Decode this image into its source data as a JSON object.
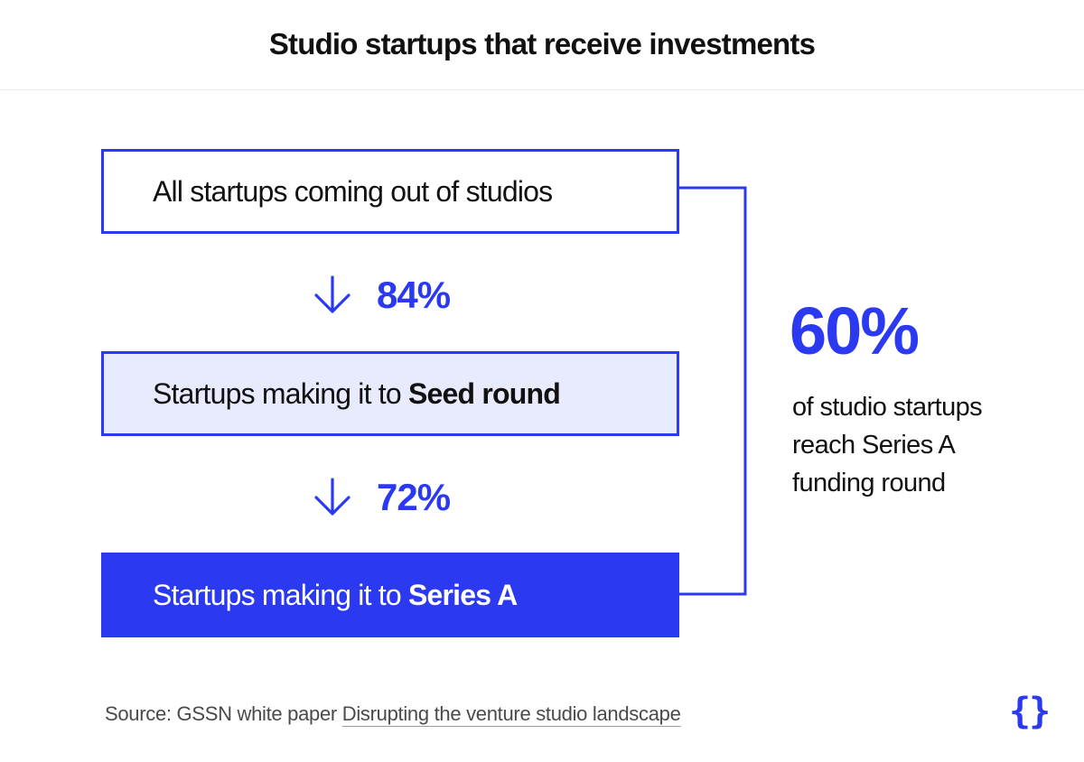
{
  "title": "Studio startups that receive investments",
  "stages": [
    {
      "label": "All startups coming out of studios",
      "bold": ""
    },
    {
      "label": "Startups making it to ",
      "bold": "Seed round"
    },
    {
      "label": "Startups making it to ",
      "bold": "Series A"
    }
  ],
  "conversions": [
    {
      "value": "84%",
      "icon": "arrow-down-icon"
    },
    {
      "value": "72%",
      "icon": "arrow-down-icon"
    }
  ],
  "summary": {
    "value": "60%",
    "lines": [
      "of studio startups",
      "reach Series A",
      "funding round"
    ]
  },
  "source": {
    "prefix": "Source: GSSN white paper ",
    "link_text": "Disrupting the venture studio landscape"
  },
  "logo": {
    "text": "{}",
    "icon": "curly-braces-logo"
  },
  "colors": {
    "accent": "#2b3af0",
    "light_fill": "#e8eafd",
    "text": "#111111",
    "muted": "#4a4a4a"
  }
}
